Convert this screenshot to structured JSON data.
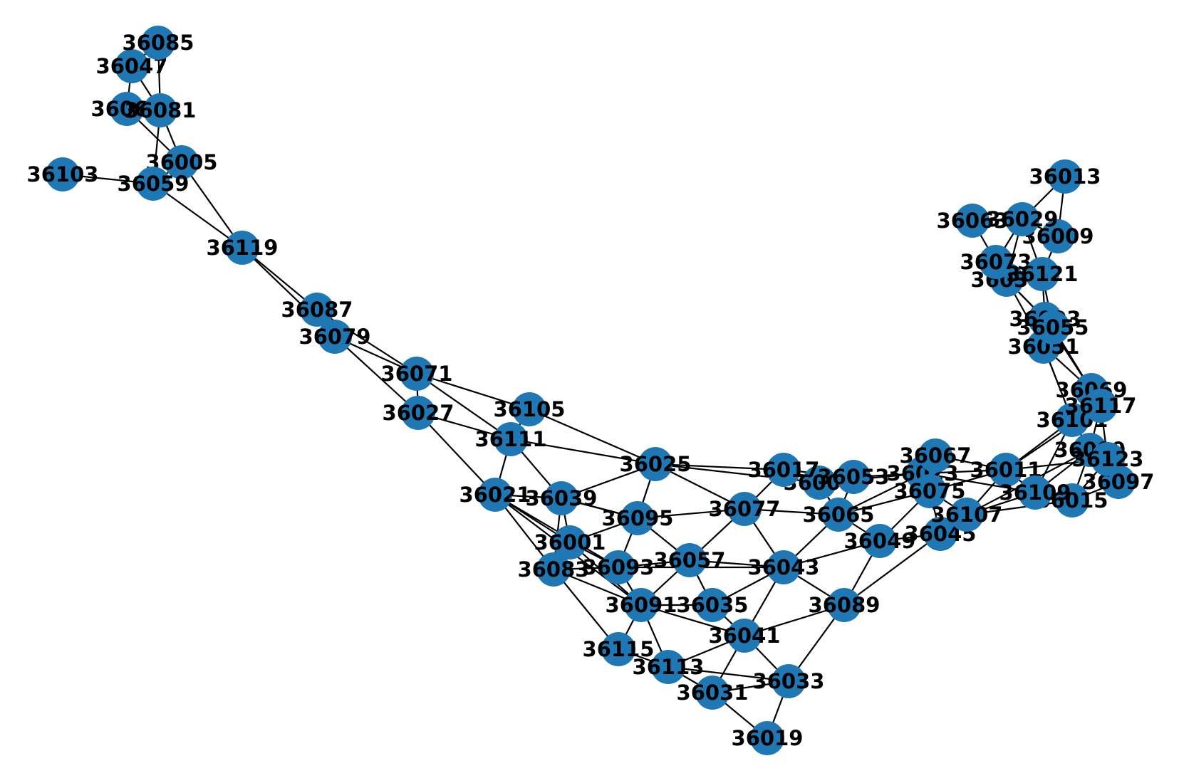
{
  "graph": {
    "node_color": "#1f77b4",
    "edge_color": "#000000",
    "label_color": "#000000",
    "nodes": [
      "36001",
      "36003",
      "36005",
      "36007",
      "36009",
      "36011",
      "36013",
      "36015",
      "36017",
      "36019",
      "36021",
      "36023",
      "36025",
      "36027",
      "36029",
      "36031",
      "36033",
      "36035",
      "36037",
      "36039",
      "36041",
      "36043",
      "36045",
      "36047",
      "36049",
      "36051",
      "36053",
      "36055",
      "36057",
      "36059",
      "36061",
      "36063",
      "36065",
      "36067",
      "36069",
      "36071",
      "36073",
      "36075",
      "36077",
      "36079",
      "36081",
      "36083",
      "36085",
      "36087",
      "36089",
      "36091",
      "36093",
      "36095",
      "36097",
      "36099",
      "36101",
      "36103",
      "36105",
      "36107",
      "36109",
      "36111",
      "36113",
      "36115",
      "36117",
      "36119",
      "36121",
      "36123"
    ],
    "edges": [
      [
        "36103",
        "36059"
      ],
      [
        "36059",
        "36005"
      ],
      [
        "36059",
        "36119"
      ],
      [
        "36061",
        "36005"
      ],
      [
        "36061",
        "36081"
      ],
      [
        "36061",
        "36047"
      ],
      [
        "36047",
        "36085"
      ],
      [
        "36047",
        "36081"
      ],
      [
        "36085",
        "36081"
      ],
      [
        "36081",
        "36005"
      ],
      [
        "36081",
        "36059"
      ],
      [
        "36005",
        "36119"
      ],
      [
        "36119",
        "36087"
      ],
      [
        "36119",
        "36079"
      ],
      [
        "36087",
        "36071"
      ],
      [
        "36087",
        "36079"
      ],
      [
        "36079",
        "36071"
      ],
      [
        "36079",
        "36027"
      ],
      [
        "36071",
        "36027"
      ],
      [
        "36071",
        "36105"
      ],
      [
        "36071",
        "36111"
      ],
      [
        "36027",
        "36111"
      ],
      [
        "36027",
        "36021"
      ],
      [
        "36105",
        "36111"
      ],
      [
        "36105",
        "36025"
      ],
      [
        "36111",
        "36025"
      ],
      [
        "36111",
        "36021"
      ],
      [
        "36111",
        "36039"
      ],
      [
        "36021",
        "36039"
      ],
      [
        "36021",
        "36001"
      ],
      [
        "36021",
        "36083"
      ],
      [
        "36021",
        "36093"
      ],
      [
        "36039",
        "36001"
      ],
      [
        "36039",
        "36083"
      ],
      [
        "36039",
        "36025"
      ],
      [
        "36039",
        "36095"
      ],
      [
        "36001",
        "36083"
      ],
      [
        "36001",
        "36093"
      ],
      [
        "36001",
        "36095"
      ],
      [
        "36001",
        "36091"
      ],
      [
        "36083",
        "36093"
      ],
      [
        "36083",
        "36091"
      ],
      [
        "36083",
        "36115"
      ],
      [
        "36093",
        "36091"
      ],
      [
        "36093",
        "36057"
      ],
      [
        "36093",
        "36043"
      ],
      [
        "36095",
        "36093"
      ],
      [
        "36095",
        "36025"
      ],
      [
        "36095",
        "36057"
      ],
      [
        "36095",
        "36077"
      ],
      [
        "36025",
        "36017"
      ],
      [
        "36025",
        "36077"
      ],
      [
        "36025",
        "36007"
      ],
      [
        "36017",
        "36077"
      ],
      [
        "36017",
        "36053"
      ],
      [
        "36017",
        "36007"
      ],
      [
        "36053",
        "36007"
      ],
      [
        "36053",
        "36065"
      ],
      [
        "36053",
        "36023"
      ],
      [
        "36007",
        "36023"
      ],
      [
        "36007",
        "36065"
      ],
      [
        "36077",
        "36057"
      ],
      [
        "36077",
        "36043"
      ],
      [
        "36077",
        "36065"
      ],
      [
        "36057",
        "36091"
      ],
      [
        "36057",
        "36035"
      ],
      [
        "36057",
        "36043"
      ],
      [
        "36091",
        "36035"
      ],
      [
        "36091",
        "36115"
      ],
      [
        "36091",
        "36113"
      ],
      [
        "36091",
        "36041"
      ],
      [
        "36035",
        "36041"
      ],
      [
        "36035",
        "36043"
      ],
      [
        "36043",
        "36041"
      ],
      [
        "36043",
        "36065"
      ],
      [
        "36043",
        "36049"
      ],
      [
        "36043",
        "36089"
      ],
      [
        "36041",
        "36089"
      ],
      [
        "36041",
        "36031"
      ],
      [
        "36041",
        "36033"
      ],
      [
        "36041",
        "36113"
      ],
      [
        "36115",
        "36113"
      ],
      [
        "36113",
        "36031"
      ],
      [
        "36113",
        "36033"
      ],
      [
        "36031",
        "36033"
      ],
      [
        "36031",
        "36019"
      ],
      [
        "36033",
        "36019"
      ],
      [
        "36033",
        "36089"
      ],
      [
        "36089",
        "36049"
      ],
      [
        "36089",
        "36045"
      ],
      [
        "36049",
        "36065"
      ],
      [
        "36049",
        "36075"
      ],
      [
        "36049",
        "36045"
      ],
      [
        "36065",
        "36075"
      ],
      [
        "36065",
        "36023"
      ],
      [
        "36075",
        "36023"
      ],
      [
        "36075",
        "36067"
      ],
      [
        "36075",
        "36011"
      ],
      [
        "36075",
        "36107"
      ],
      [
        "36075",
        "36045"
      ],
      [
        "36023",
        "36067"
      ],
      [
        "36023",
        "36011"
      ],
      [
        "36023",
        "36109"
      ],
      [
        "36067",
        "36011"
      ],
      [
        "36011",
        "36107"
      ],
      [
        "36011",
        "36109"
      ],
      [
        "36011",
        "36101"
      ],
      [
        "36011",
        "36123"
      ],
      [
        "36011",
        "36117"
      ],
      [
        "36045",
        "36107"
      ],
      [
        "36107",
        "36109"
      ],
      [
        "36107",
        "36015"
      ],
      [
        "36107",
        "36099"
      ],
      [
        "36109",
        "36015"
      ],
      [
        "36109",
        "36101"
      ],
      [
        "36109",
        "36099"
      ],
      [
        "36015",
        "36097"
      ],
      [
        "36015",
        "36123"
      ],
      [
        "36015",
        "36099"
      ],
      [
        "36097",
        "36123"
      ],
      [
        "36097",
        "36099"
      ],
      [
        "36099",
        "36123"
      ],
      [
        "36099",
        "36101"
      ],
      [
        "36099",
        "36117"
      ],
      [
        "36101",
        "36117"
      ],
      [
        "36101",
        "36069"
      ],
      [
        "36101",
        "36051"
      ],
      [
        "36117",
        "36069"
      ],
      [
        "36117",
        "36123"
      ],
      [
        "36069",
        "36051"
      ],
      [
        "36069",
        "36055"
      ],
      [
        "36069",
        "36003"
      ],
      [
        "36051",
        "36055"
      ],
      [
        "36051",
        "36003"
      ],
      [
        "36051",
        "36037"
      ],
      [
        "36051",
        "36101"
      ],
      [
        "36003",
        "36055"
      ],
      [
        "36003",
        "36037"
      ],
      [
        "36003",
        "36121"
      ],
      [
        "36055",
        "36121"
      ],
      [
        "36055",
        "36037"
      ],
      [
        "36037",
        "36073"
      ],
      [
        "36037",
        "36121"
      ],
      [
        "36037",
        "36029"
      ],
      [
        "36073",
        "36063"
      ],
      [
        "36073",
        "36029"
      ],
      [
        "36073",
        "36121"
      ],
      [
        "36063",
        "36029"
      ],
      [
        "36029",
        "36013"
      ],
      [
        "36029",
        "36009"
      ],
      [
        "36029",
        "36121"
      ],
      [
        "36013",
        "36009"
      ],
      [
        "36009",
        "36121"
      ],
      [
        "36021",
        "36091"
      ],
      [
        "36095",
        "36039"
      ]
    ]
  }
}
